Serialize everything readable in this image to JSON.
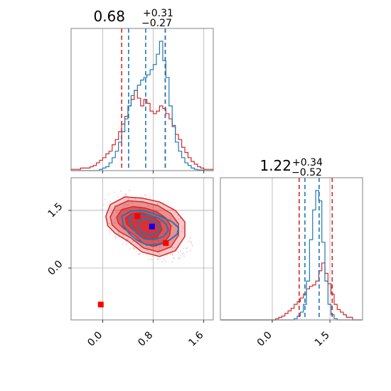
{
  "chart_data": {
    "type": "corner",
    "colors": {
      "blue": "#1f77b4",
      "red": "#d62728",
      "scatter_pink": "#f4b6c2",
      "grid": "#b0b0b0",
      "frame": "#808080"
    },
    "grid": true,
    "titles": [
      {
        "parameter": 1,
        "value": "0.68",
        "upper": "+0.31",
        "lower": "−0.27"
      },
      {
        "parameter": 2,
        "value": "1.22",
        "upper": "+0.34",
        "lower": "−0.52"
      }
    ],
    "param1_axis": {
      "range": [
        -0.5,
        1.75
      ],
      "ticks": [
        0.0,
        0.8,
        1.6
      ],
      "tick_labels": [
        "0.0",
        "0.8",
        "1.6"
      ]
    },
    "param2_axis": {
      "range": [
        -1.35,
        2.35
      ],
      "ticks": [
        0.0,
        1.5
      ],
      "tick_labels": [
        "0.0",
        "1.5"
      ]
    },
    "hist1": {
      "bin_width": 0.05,
      "bin_starts": [
        -0.5,
        -0.45,
        -0.4,
        -0.35,
        -0.3,
        -0.25,
        -0.2,
        -0.15,
        -0.1,
        -0.05,
        0.0,
        0.05,
        0.1,
        0.15,
        0.2,
        0.25,
        0.3,
        0.35,
        0.4,
        0.45,
        0.5,
        0.55,
        0.6,
        0.65,
        0.7,
        0.75,
        0.8,
        0.85,
        0.9,
        0.95,
        1.0,
        1.05,
        1.1,
        1.15,
        1.2,
        1.25,
        1.3,
        1.35,
        1.4,
        1.45,
        1.5,
        1.55,
        1.6,
        1.65,
        1.7
      ],
      "blue": [
        0,
        0,
        0,
        0,
        0,
        0,
        0,
        0,
        0,
        0.01,
        0.02,
        0.03,
        0.06,
        0.1,
        0.15,
        0.22,
        0.3,
        0.4,
        0.5,
        0.58,
        0.62,
        0.66,
        0.7,
        0.72,
        0.74,
        0.78,
        0.82,
        0.9,
        1.0,
        0.85,
        0.72,
        0.5,
        0.35,
        0.22,
        0.15,
        0.1,
        0.06,
        0.04,
        0.02,
        0.01,
        0.005,
        0.005,
        0,
        0,
        0
      ],
      "red": [
        0.01,
        0.01,
        0.01,
        0.02,
        0.02,
        0.02,
        0.03,
        0.04,
        0.06,
        0.08,
        0.1,
        0.13,
        0.15,
        0.2,
        0.24,
        0.3,
        0.36,
        0.42,
        0.5,
        0.55,
        0.62,
        0.56,
        0.5,
        0.55,
        0.52,
        0.46,
        0.44,
        0.46,
        0.5,
        0.48,
        0.44,
        0.4,
        0.34,
        0.28,
        0.24,
        0.18,
        0.14,
        0.1,
        0.07,
        0.05,
        0.03,
        0.02,
        0.01,
        0.01,
        0.01
      ],
      "blue_lines": [
        0.41,
        0.68,
        0.99
      ],
      "red_lines": [
        0.3,
        0.99
      ]
    },
    "hist2": {
      "bin_width": 0.08,
      "bin_starts": [
        -1.35,
        -1.27,
        -1.19,
        -1.11,
        -1.03,
        -0.95,
        -0.87,
        -0.79,
        -0.71,
        -0.63,
        -0.55,
        -0.47,
        -0.39,
        -0.31,
        -0.23,
        -0.15,
        -0.07,
        0.01,
        0.09,
        0.17,
        0.25,
        0.33,
        0.41,
        0.49,
        0.57,
        0.65,
        0.73,
        0.81,
        0.89,
        0.97,
        1.05,
        1.13,
        1.21,
        1.29,
        1.37,
        1.45,
        1.53,
        1.61,
        1.69,
        1.77,
        1.85,
        1.93,
        2.01,
        2.09,
        2.17,
        2.25
      ],
      "blue": [
        0,
        0,
        0,
        0,
        0,
        0,
        0,
        0,
        0,
        0,
        0,
        0,
        0,
        0,
        0,
        0,
        0,
        0,
        0,
        0,
        0,
        0,
        0,
        0,
        0.01,
        0.03,
        0.06,
        0.12,
        0.3,
        0.62,
        0.85,
        1.0,
        0.92,
        0.6,
        0.3,
        0.12,
        0.04,
        0.01,
        0,
        0,
        0,
        0,
        0,
        0,
        0,
        0
      ],
      "red": [
        0,
        0,
        0,
        0,
        0,
        0,
        0,
        0,
        0,
        0,
        0,
        0,
        0,
        0,
        0,
        0,
        0,
        0,
        0.01,
        0.02,
        0.03,
        0.05,
        0.07,
        0.09,
        0.12,
        0.14,
        0.17,
        0.2,
        0.24,
        0.26,
        0.27,
        0.3,
        0.38,
        0.44,
        0.36,
        0.28,
        0.2,
        0.12,
        0.08,
        0.06,
        0.04,
        0.02,
        0.02,
        0,
        0,
        0
      ],
      "blue_lines": [
        0.85,
        1.22
      ],
      "red_lines": [
        0.7,
        1.56
      ]
    },
    "scatter_2d": {
      "points": [
        {
          "x": -0.03,
          "y": -0.95,
          "color": "red"
        },
        {
          "x": 0.55,
          "y": 1.35,
          "color": "red"
        },
        {
          "x": 0.78,
          "y": 1.08,
          "color": "blue"
        },
        {
          "x": 1.0,
          "y": 0.65,
          "color": "red"
        }
      ],
      "red_contours": [
        [
          [
            0.05,
            1.35
          ],
          [
            0.12,
            1.65
          ],
          [
            0.35,
            1.85
          ],
          [
            0.62,
            1.82
          ],
          [
            0.9,
            1.72
          ],
          [
            1.15,
            1.5
          ],
          [
            1.3,
            1.2
          ],
          [
            1.3,
            0.82
          ],
          [
            1.15,
            0.45
          ],
          [
            0.9,
            0.3
          ],
          [
            0.62,
            0.42
          ],
          [
            0.4,
            0.7
          ],
          [
            0.2,
            0.9
          ],
          [
            0.08,
            1.1
          ]
        ],
        [
          [
            0.12,
            1.33
          ],
          [
            0.2,
            1.6
          ],
          [
            0.4,
            1.75
          ],
          [
            0.64,
            1.72
          ],
          [
            0.88,
            1.62
          ],
          [
            1.08,
            1.42
          ],
          [
            1.2,
            1.15
          ],
          [
            1.2,
            0.85
          ],
          [
            1.08,
            0.55
          ],
          [
            0.88,
            0.42
          ],
          [
            0.65,
            0.52
          ],
          [
            0.45,
            0.78
          ],
          [
            0.26,
            0.95
          ],
          [
            0.15,
            1.12
          ]
        ],
        [
          [
            0.22,
            1.32
          ],
          [
            0.3,
            1.52
          ],
          [
            0.48,
            1.6
          ],
          [
            0.68,
            1.56
          ],
          [
            0.86,
            1.46
          ],
          [
            1.0,
            1.3
          ],
          [
            1.08,
            1.1
          ],
          [
            1.06,
            0.85
          ],
          [
            0.96,
            0.64
          ],
          [
            0.8,
            0.56
          ],
          [
            0.64,
            0.64
          ],
          [
            0.5,
            0.86
          ],
          [
            0.34,
            1.02
          ],
          [
            0.25,
            1.16
          ]
        ],
        [
          [
            0.36,
            1.3
          ],
          [
            0.46,
            1.42
          ],
          [
            0.62,
            1.44
          ],
          [
            0.78,
            1.36
          ],
          [
            0.9,
            1.2
          ],
          [
            0.94,
            1.0
          ],
          [
            0.86,
            0.8
          ],
          [
            0.72,
            0.74
          ],
          [
            0.6,
            0.82
          ],
          [
            0.48,
            1.0
          ],
          [
            0.38,
            1.14
          ]
        ]
      ],
      "blue_contours": [
        [
          [
            0.3,
            1.35
          ],
          [
            0.45,
            1.48
          ],
          [
            0.62,
            1.5
          ],
          [
            0.8,
            1.42
          ],
          [
            0.95,
            1.32
          ],
          [
            1.1,
            1.2
          ],
          [
            1.2,
            1.05
          ],
          [
            1.18,
            0.88
          ],
          [
            1.05,
            0.72
          ],
          [
            0.88,
            0.62
          ],
          [
            0.7,
            0.6
          ],
          [
            0.55,
            0.72
          ],
          [
            0.42,
            0.9
          ],
          [
            0.33,
            1.1
          ]
        ],
        [
          [
            0.42,
            1.3
          ],
          [
            0.56,
            1.4
          ],
          [
            0.72,
            1.38
          ],
          [
            0.88,
            1.3
          ],
          [
            1.0,
            1.15
          ],
          [
            1.04,
            0.98
          ],
          [
            0.96,
            0.82
          ],
          [
            0.82,
            0.74
          ],
          [
            0.66,
            0.76
          ],
          [
            0.54,
            0.9
          ],
          [
            0.45,
            1.08
          ]
        ],
        [
          [
            0.56,
            1.24
          ],
          [
            0.7,
            1.28
          ],
          [
            0.84,
            1.2
          ],
          [
            0.92,
            1.05
          ],
          [
            0.88,
            0.92
          ],
          [
            0.76,
            0.86
          ],
          [
            0.64,
            0.9
          ],
          [
            0.56,
            1.04
          ]
        ]
      ]
    }
  }
}
